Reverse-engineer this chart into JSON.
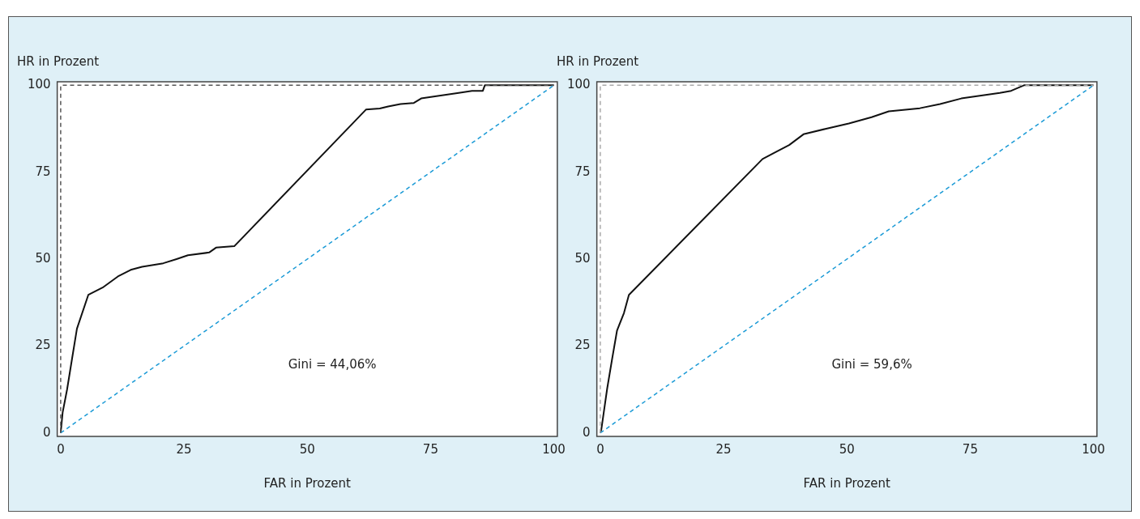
{
  "chart_data": [
    {
      "type": "line",
      "xlabel": "FAR in Prozent",
      "ylabel": "HR in Prozent",
      "xlim": [
        -0.7,
        100.7
      ],
      "ylim": [
        -1,
        101
      ],
      "xticks": [
        0,
        25,
        50,
        75,
        100
      ],
      "yticks": [
        0,
        25,
        50,
        75,
        100
      ],
      "grid": false,
      "legend": false,
      "marker": "none",
      "annotations": [
        "Gini = 44,06%"
      ],
      "series": [
        {
          "color": "#555555",
          "line_style": "dashed",
          "x": [
            0,
            0,
            100
          ],
          "values": [
            0,
            100,
            100
          ]
        },
        {
          "color": "#1a9ad6",
          "line_style": "dashed",
          "x": [
            0,
            100
          ],
          "values": [
            0,
            100
          ]
        },
        {
          "color": "#111111",
          "line_style": "solid",
          "x": [
            0,
            0.4,
            1.3,
            2.3,
            3.3,
            5.6,
            8.5,
            11.6,
            14.2,
            16.5,
            20.8,
            23.5,
            25.8,
            30.1,
            31.5,
            35.2,
            61.9,
            64.7,
            66.4,
            68.9,
            71.6,
            73.1,
            75.9,
            80.7,
            83.4,
            85.6,
            86,
            100
          ],
          "values": [
            0,
            5.9,
            12.5,
            21.3,
            30,
            39.7,
            41.8,
            45,
            46.9,
            47.8,
            48.8,
            50,
            51.1,
            51.9,
            53.3,
            53.7,
            93,
            93.3,
            93.9,
            94.6,
            94.9,
            96.2,
            96.8,
            97.8,
            98.4,
            98.4,
            100,
            100
          ]
        }
      ]
    },
    {
      "type": "line",
      "xlabel": "FAR in Prozent",
      "ylabel": "HR in Prozent",
      "xlim": [
        -0.7,
        100.7
      ],
      "ylim": [
        -1,
        101
      ],
      "xticks": [
        0,
        25,
        50,
        75,
        100
      ],
      "yticks": [
        0,
        25,
        50,
        75,
        100
      ],
      "grid": false,
      "legend": false,
      "marker": "none",
      "annotations": [
        "Gini = 59,6%"
      ],
      "series": [
        {
          "color": "#aaaaaa",
          "line_style": "dashed",
          "x": [
            0,
            0,
            100
          ],
          "values": [
            0,
            100,
            100
          ]
        },
        {
          "color": "#1a9ad6",
          "line_style": "dashed",
          "x": [
            0,
            100
          ],
          "values": [
            0,
            100
          ]
        },
        {
          "color": "#111111",
          "line_style": "solid",
          "x": [
            0,
            0.2,
            1.4,
            2.4,
            3.4,
            4.8,
            5.8,
            32.9,
            35.7,
            38.3,
            41.2,
            45.8,
            50.4,
            55,
            58.5,
            64.8,
            68.9,
            73.2,
            81,
            83.3,
            85.9,
            100
          ],
          "values": [
            0,
            0.9,
            12.8,
            21.3,
            29.5,
            34.5,
            39.7,
            78.8,
            80.9,
            82.8,
            85.9,
            87.5,
            89,
            90.8,
            92.5,
            93.4,
            94.6,
            96.2,
            97.8,
            98.4,
            100,
            100
          ]
        }
      ]
    }
  ]
}
